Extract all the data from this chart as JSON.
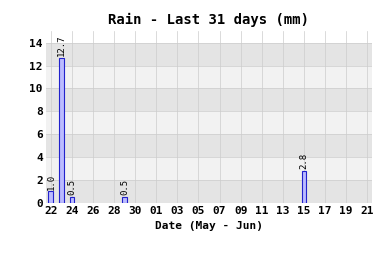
{
  "title": "Rain - Last 31 days (mm)",
  "xlabel": "Date (May - Jun)",
  "bar_data": [
    {
      "day_index": 0,
      "value": 1.0
    },
    {
      "day_index": 1,
      "value": 12.7
    },
    {
      "day_index": 2,
      "value": 0.5
    },
    {
      "day_index": 7,
      "value": 0.5
    },
    {
      "day_index": 24,
      "value": 2.8
    }
  ],
  "x_tick_labels": [
    "22",
    "24",
    "26",
    "28",
    "30",
    "01",
    "03",
    "05",
    "07",
    "09",
    "11",
    "13",
    "15",
    "17",
    "19",
    "21"
  ],
  "x_tick_positions": [
    0,
    2,
    4,
    6,
    8,
    10,
    12,
    14,
    16,
    18,
    20,
    22,
    24,
    26,
    28,
    30
  ],
  "ylim": [
    0,
    15.0
  ],
  "yticks": [
    0,
    2,
    4,
    6,
    8,
    10,
    12,
    14
  ],
  "num_days": 31,
  "xlim": [
    -0.5,
    30.5
  ],
  "bar_fill_color": "#bbbbff",
  "bar_edge_color": "#2222cc",
  "bg_color": "#ffffff",
  "grid_color": "#cccccc",
  "band_colors": [
    "#e4e4e4",
    "#f2f2f2"
  ],
  "title_fontsize": 10,
  "axis_fontsize": 8,
  "tick_fontsize": 8,
  "value_fontsize": 6.5
}
